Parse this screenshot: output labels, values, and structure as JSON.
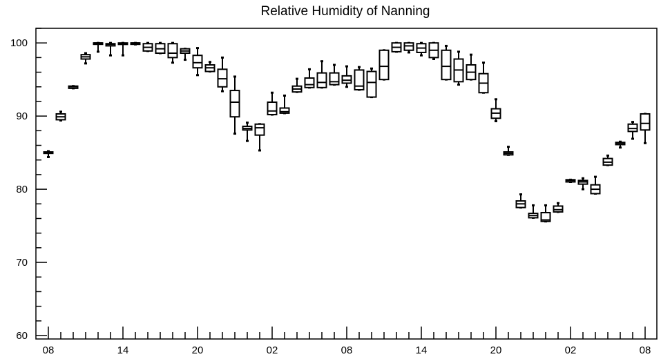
{
  "chart_data": {
    "type": "box",
    "title": "Relative Humidity of Nanning",
    "xlabel": "",
    "ylabel": "",
    "ylim": [
      60,
      102
    ],
    "yticks": [
      60,
      70,
      80,
      90,
      100
    ],
    "xtick_labels": [
      "08",
      "14",
      "20",
      "02",
      "08",
      "14",
      "20",
      "02",
      "08"
    ],
    "grid": false,
    "boxes": [
      {
        "x": 0,
        "q1": 84.9,
        "median": 85.0,
        "q3": 85.1,
        "whisker_low": 84.4,
        "whisker_high": 85.2
      },
      {
        "x": 1,
        "q1": 89.5,
        "median": 89.9,
        "q3": 90.3,
        "whisker_low": 89.4,
        "whisker_high": 90.6
      },
      {
        "x": 2,
        "q1": 93.8,
        "median": 94.0,
        "q3": 94.1,
        "whisker_low": 93.8,
        "whisker_high": 94.1
      },
      {
        "x": 3,
        "q1": 97.8,
        "median": 98.1,
        "q3": 98.4,
        "whisker_low": 97.2,
        "whisker_high": 98.6
      },
      {
        "x": 4,
        "q1": 99.9,
        "median": 100.0,
        "q3": 100.0,
        "whisker_low": 98.8,
        "whisker_high": 100.0
      },
      {
        "x": 5,
        "q1": 99.6,
        "median": 99.8,
        "q3": 99.9,
        "whisker_low": 98.3,
        "whisker_high": 100.0
      },
      {
        "x": 6,
        "q1": 99.8,
        "median": 99.9,
        "q3": 100.0,
        "whisker_low": 98.3,
        "whisker_high": 100.0
      },
      {
        "x": 7,
        "q1": 99.9,
        "median": 100.0,
        "q3": 100.0,
        "whisker_low": 99.8,
        "whisker_high": 100.0
      },
      {
        "x": 8,
        "q1": 98.9,
        "median": 99.4,
        "q3": 99.9,
        "whisker_low": 98.9,
        "whisker_high": 100.0
      },
      {
        "x": 9,
        "q1": 98.6,
        "median": 99.2,
        "q3": 99.9,
        "whisker_low": 98.6,
        "whisker_high": 100.0
      },
      {
        "x": 10,
        "q1": 98.0,
        "median": 98.6,
        "q3": 99.9,
        "whisker_low": 97.3,
        "whisker_high": 100.0
      },
      {
        "x": 11,
        "q1": 98.6,
        "median": 98.9,
        "q3": 99.2,
        "whisker_low": 97.7,
        "whisker_high": 99.2
      },
      {
        "x": 12,
        "q1": 96.6,
        "median": 97.3,
        "q3": 98.3,
        "whisker_low": 95.6,
        "whisker_high": 99.3
      },
      {
        "x": 13,
        "q1": 96.1,
        "median": 96.6,
        "q3": 97.0,
        "whisker_low": 96.1,
        "whisker_high": 97.4
      },
      {
        "x": 14,
        "q1": 94.0,
        "median": 95.1,
        "q3": 96.4,
        "whisker_low": 93.4,
        "whisker_high": 98.0
      },
      {
        "x": 15,
        "q1": 89.9,
        "median": 91.9,
        "q3": 93.5,
        "whisker_low": 87.6,
        "whisker_high": 95.4
      },
      {
        "x": 16,
        "q1": 88.1,
        "median": 88.3,
        "q3": 88.6,
        "whisker_low": 86.6,
        "whisker_high": 89.1
      },
      {
        "x": 17,
        "q1": 87.4,
        "median": 88.4,
        "q3": 88.9,
        "whisker_low": 85.3,
        "whisker_high": 88.9
      },
      {
        "x": 18,
        "q1": 90.2,
        "median": 90.7,
        "q3": 91.9,
        "whisker_low": 90.2,
        "whisker_high": 93.2
      },
      {
        "x": 19,
        "q1": 90.4,
        "median": 90.6,
        "q3": 91.1,
        "whisker_low": 90.4,
        "whisker_high": 92.8
      },
      {
        "x": 20,
        "q1": 93.3,
        "median": 93.7,
        "q3": 94.1,
        "whisker_low": 93.3,
        "whisker_high": 95.1
      },
      {
        "x": 21,
        "q1": 93.9,
        "median": 94.3,
        "q3": 95.2,
        "whisker_low": 93.9,
        "whisker_high": 96.4
      },
      {
        "x": 22,
        "q1": 93.9,
        "median": 94.6,
        "q3": 95.9,
        "whisker_low": 93.9,
        "whisker_high": 97.5
      },
      {
        "x": 23,
        "q1": 94.3,
        "median": 94.7,
        "q3": 95.9,
        "whisker_low": 94.3,
        "whisker_high": 97.0
      },
      {
        "x": 24,
        "q1": 94.5,
        "median": 94.9,
        "q3": 95.5,
        "whisker_low": 94.0,
        "whisker_high": 96.8
      },
      {
        "x": 25,
        "q1": 93.6,
        "median": 94.1,
        "q3": 96.3,
        "whisker_low": 93.6,
        "whisker_high": 96.7
      },
      {
        "x": 26,
        "q1": 92.6,
        "median": 94.6,
        "q3": 96.1,
        "whisker_low": 92.6,
        "whisker_high": 96.5
      },
      {
        "x": 27,
        "q1": 95.0,
        "median": 96.8,
        "q3": 99.0,
        "whisker_low": 95.0,
        "whisker_high": 99.0
      },
      {
        "x": 28,
        "q1": 98.8,
        "median": 99.4,
        "q3": 100.0,
        "whisker_low": 98.8,
        "whisker_high": 100.0
      },
      {
        "x": 29,
        "q1": 99.0,
        "median": 99.6,
        "q3": 100.0,
        "whisker_low": 98.7,
        "whisker_high": 100.0
      },
      {
        "x": 30,
        "q1": 98.7,
        "median": 99.3,
        "q3": 99.9,
        "whisker_low": 98.3,
        "whisker_high": 100.0
      },
      {
        "x": 31,
        "q1": 98.0,
        "median": 99.0,
        "q3": 100.0,
        "whisker_low": 97.8,
        "whisker_high": 100.0
      },
      {
        "x": 32,
        "q1": 95.0,
        "median": 96.8,
        "q3": 99.0,
        "whisker_low": 95.0,
        "whisker_high": 99.6
      },
      {
        "x": 33,
        "q1": 94.7,
        "median": 96.3,
        "q3": 97.8,
        "whisker_low": 94.3,
        "whisker_high": 98.8
      },
      {
        "x": 34,
        "q1": 95.0,
        "median": 96.0,
        "q3": 97.0,
        "whisker_low": 95.0,
        "whisker_high": 98.4
      },
      {
        "x": 35,
        "q1": 93.2,
        "median": 94.5,
        "q3": 95.8,
        "whisker_low": 93.2,
        "whisker_high": 97.3
      },
      {
        "x": 36,
        "q1": 89.7,
        "median": 90.4,
        "q3": 91.0,
        "whisker_low": 89.3,
        "whisker_high": 92.3
      },
      {
        "x": 37,
        "q1": 84.7,
        "median": 84.9,
        "q3": 85.1,
        "whisker_low": 84.7,
        "whisker_high": 85.8
      },
      {
        "x": 38,
        "q1": 77.5,
        "median": 78.0,
        "q3": 78.4,
        "whisker_low": 77.5,
        "whisker_high": 79.3
      },
      {
        "x": 39,
        "q1": 76.1,
        "median": 76.4,
        "q3": 76.7,
        "whisker_low": 76.1,
        "whisker_high": 77.8
      },
      {
        "x": 40,
        "q1": 75.6,
        "median": 75.8,
        "q3": 76.8,
        "whisker_low": 75.6,
        "whisker_high": 77.8
      },
      {
        "x": 41,
        "q1": 76.9,
        "median": 77.2,
        "q3": 77.7,
        "whisker_low": 76.9,
        "whisker_high": 78.1
      },
      {
        "x": 42,
        "q1": 81.0,
        "median": 81.2,
        "q3": 81.3,
        "whisker_low": 81.0,
        "whisker_high": 81.3
      },
      {
        "x": 43,
        "q1": 80.7,
        "median": 81.0,
        "q3": 81.2,
        "whisker_low": 80.0,
        "whisker_high": 81.5
      },
      {
        "x": 44,
        "q1": 79.4,
        "median": 80.0,
        "q3": 80.6,
        "whisker_low": 79.4,
        "whisker_high": 81.7
      },
      {
        "x": 45,
        "q1": 83.3,
        "median": 83.7,
        "q3": 84.2,
        "whisker_low": 83.3,
        "whisker_high": 84.6
      },
      {
        "x": 46,
        "q1": 86.1,
        "median": 86.3,
        "q3": 86.4,
        "whisker_low": 85.7,
        "whisker_high": 86.5
      },
      {
        "x": 47,
        "q1": 87.9,
        "median": 88.3,
        "q3": 88.9,
        "whisker_low": 86.9,
        "whisker_high": 89.2
      },
      {
        "x": 48,
        "q1": 88.1,
        "median": 89.0,
        "q3": 90.3,
        "whisker_low": 86.3,
        "whisker_high": 90.3
      }
    ]
  }
}
